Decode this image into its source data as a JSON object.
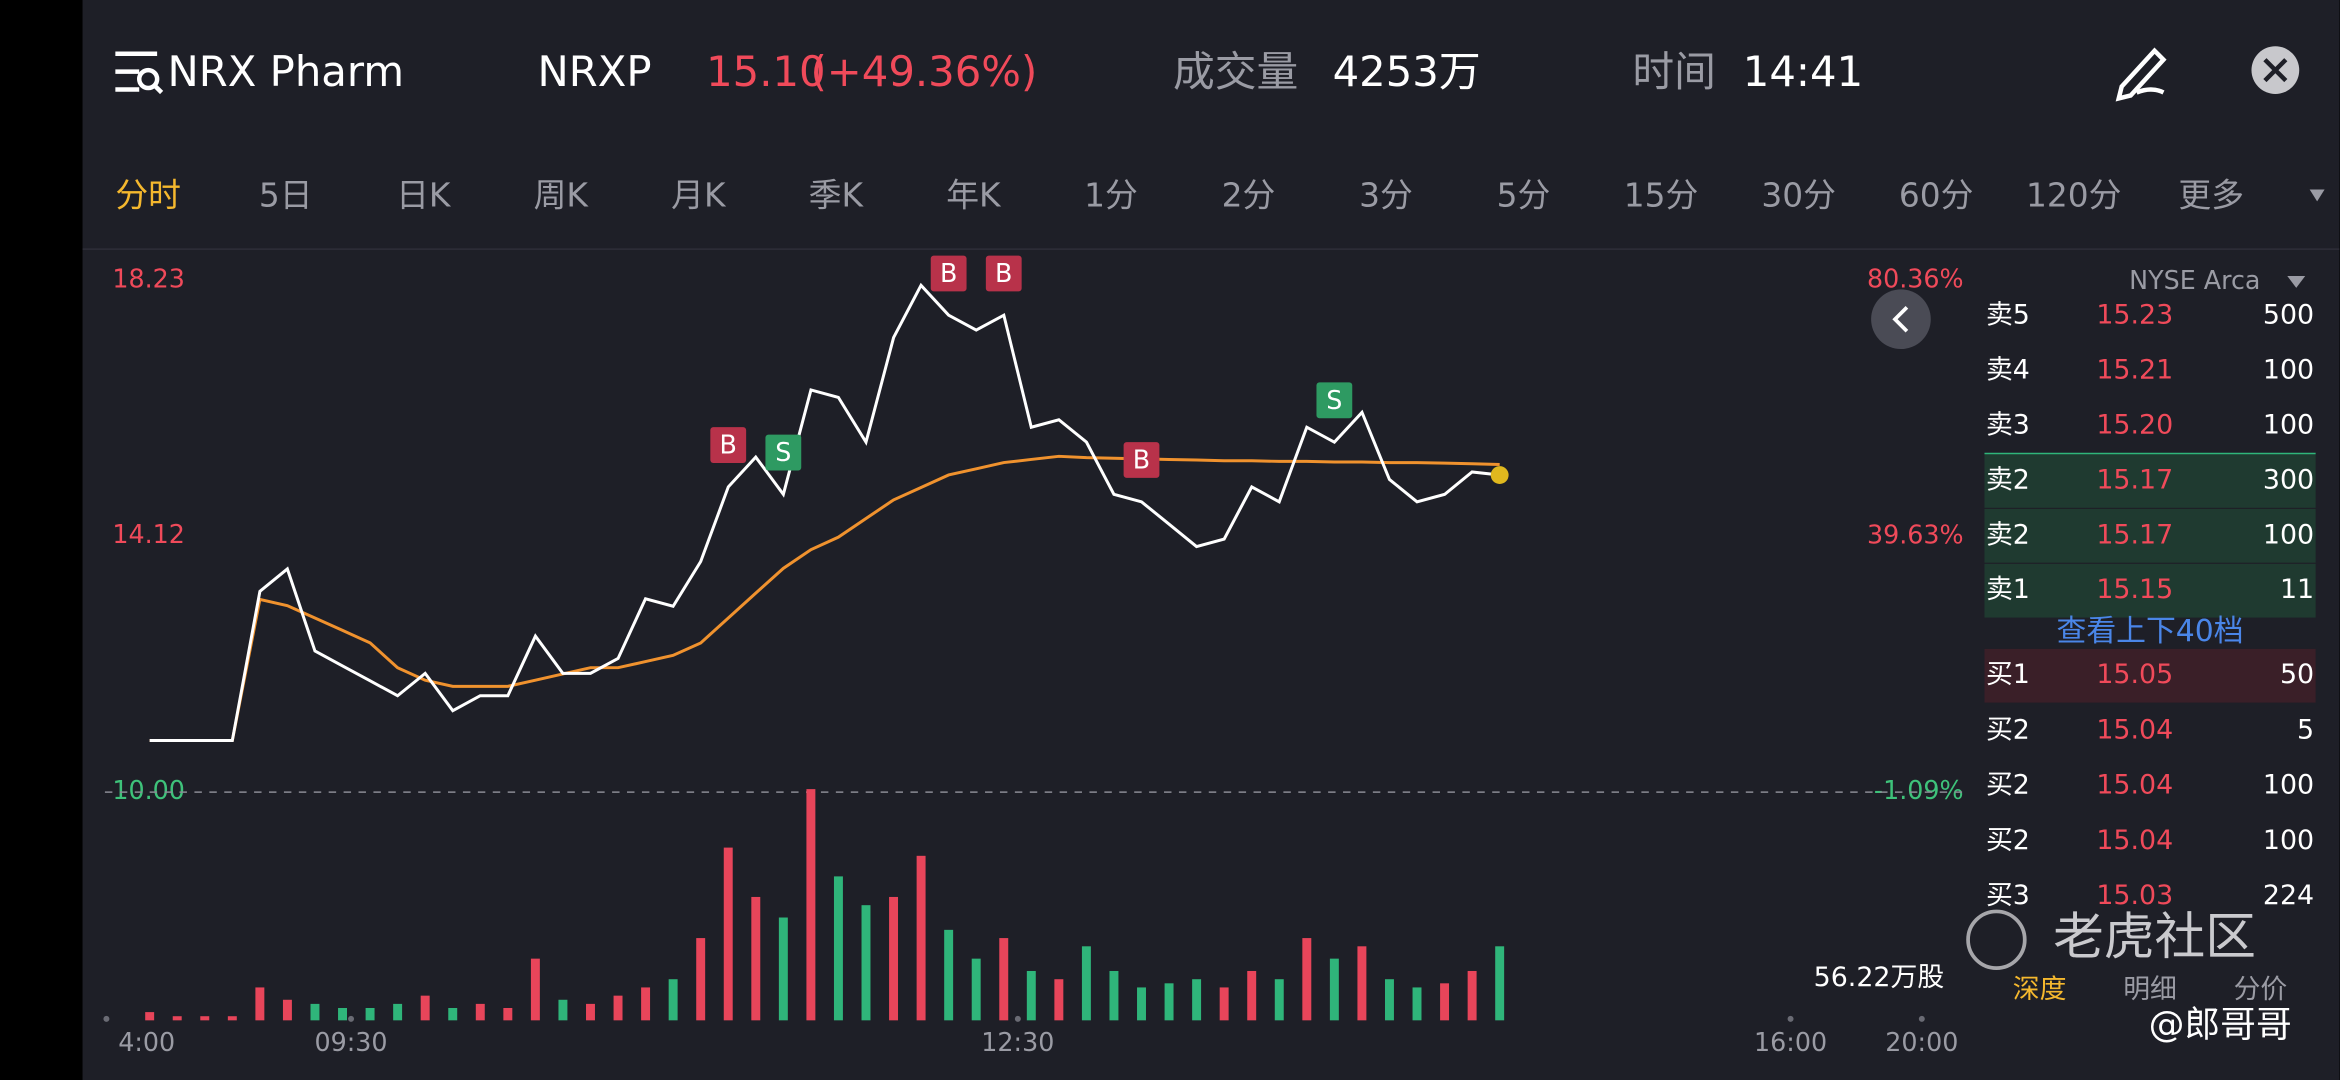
{
  "header": {
    "title": "NRX Pharm",
    "symbol": "NRXP",
    "price": "15.10",
    "change": "(+49.36%)",
    "volume_label": "成交量",
    "volume": "4253万",
    "time_label": "时间",
    "time": "14:41"
  },
  "tabs": [
    "分时",
    "5日",
    "日K",
    "周K",
    "月K",
    "季K",
    "年K",
    "1分",
    "2分",
    "3分",
    "5分",
    "15分",
    "30分",
    "60分",
    "120分",
    "更多"
  ],
  "chart_data": {
    "type": "line",
    "ylim": [
      10.0,
      18.23
    ],
    "yticks": [
      {
        "value": 10,
        "label": "10.00"
      },
      {
        "value": 14.12,
        "label": "14.12"
      },
      {
        "value": 18.23,
        "label": "18.23"
      }
    ],
    "y2lim": [
      -1.09,
      80.36
    ],
    "y2ticks": [
      {
        "value": -1.09,
        "label": "-1.09%"
      },
      {
        "value": 39.63,
        "label": "39.63%"
      },
      {
        "value": 80.36,
        "label": "80.36%"
      }
    ],
    "x_labels": [
      "4:00",
      "09:30",
      "12:30",
      "16:00",
      "20:00"
    ],
    "price": [
      10.83,
      10.83,
      10.83,
      10.83,
      13.23,
      13.59,
      12.27,
      12.03,
      11.79,
      11.55,
      11.91,
      11.31,
      11.55,
      11.55,
      12.51,
      11.91,
      11.91,
      12.15,
      13.11,
      12.99,
      13.71,
      14.91,
      15.39,
      14.79,
      16.47,
      16.35,
      15.63,
      17.31,
      18.15,
      17.67,
      17.43,
      17.67,
      15.87,
      15.99,
      15.63,
      14.79,
      14.67,
      14.31,
      13.95,
      14.07,
      14.91,
      14.67,
      15.87,
      15.63,
      16.11,
      15.03,
      14.67,
      14.79,
      15.15,
      15.1
    ],
    "average": [
      10.83,
      10.83,
      10.83,
      10.83,
      13.1,
      13.0,
      12.8,
      12.6,
      12.4,
      12.0,
      11.8,
      11.7,
      11.7,
      11.7,
      11.8,
      11.9,
      12.0,
      12.0,
      12.1,
      12.2,
      12.4,
      12.8,
      13.2,
      13.6,
      13.9,
      14.1,
      14.4,
      14.7,
      14.9,
      15.1,
      15.2,
      15.3,
      15.35,
      15.4,
      15.38,
      15.37,
      15.36,
      15.35,
      15.34,
      15.33,
      15.33,
      15.32,
      15.32,
      15.31,
      15.31,
      15.3,
      15.3,
      15.29,
      15.28,
      15.27
    ],
    "volume": [
      2,
      1,
      1,
      1,
      8,
      5,
      4,
      3,
      3,
      4,
      6,
      3,
      4,
      3,
      15,
      5,
      4,
      6,
      8,
      10,
      20,
      42,
      30,
      25,
      56.22,
      35,
      28,
      30,
      40,
      22,
      15,
      20,
      12,
      10,
      18,
      12,
      8,
      9,
      10,
      8,
      12,
      10,
      20,
      15,
      18,
      10,
      8,
      9,
      12,
      18
    ],
    "volume_label": "56.22万股",
    "trade_marks": [
      "B",
      "S",
      "B",
      "B",
      "B",
      "S"
    ]
  },
  "order_book": {
    "exchange": "NYSE Arca",
    "asks": [
      [
        "卖5",
        "15.23",
        "500"
      ],
      [
        "卖4",
        "15.21",
        "100"
      ],
      [
        "卖3",
        "15.20",
        "100"
      ],
      [
        "卖2",
        "15.17",
        "300"
      ],
      [
        "卖2",
        "15.17",
        "100"
      ],
      [
        "卖1",
        "15.15",
        "11"
      ]
    ],
    "link": "查看上下40档",
    "bids": [
      [
        "买1",
        "15.05",
        "50"
      ],
      [
        "买2",
        "15.04",
        "5"
      ],
      [
        "买2",
        "15.04",
        "100"
      ],
      [
        "买2",
        "15.04",
        "100"
      ],
      [
        "买3",
        "15.03",
        "224"
      ]
    ],
    "tabs": [
      "深度",
      "明细",
      "分价"
    ]
  },
  "watermark": {
    "brand": "老虎社区",
    "user": "@郎哥哥"
  }
}
